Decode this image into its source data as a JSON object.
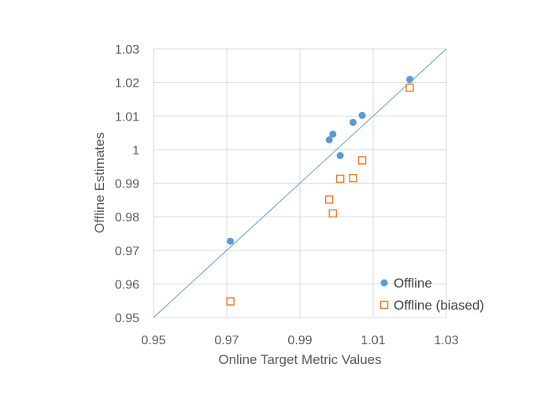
{
  "chart_data": {
    "type": "scatter",
    "title": "",
    "xlabel": "Online Target Metric Values",
    "ylabel": "Offline Estimates",
    "xlim": [
      0.95,
      1.03
    ],
    "ylim": [
      0.95,
      1.03
    ],
    "x_ticks": [
      0.95,
      0.97,
      0.99,
      1.01,
      1.03
    ],
    "x_tick_labels": [
      "0.95",
      "0.97",
      "0.99",
      "1.01",
      "1.03"
    ],
    "y_ticks": [
      0.95,
      0.96,
      0.97,
      0.98,
      0.99,
      1.0,
      1.01,
      1.02,
      1.03
    ],
    "y_tick_labels": [
      "0.95",
      "0.96",
      "0.97",
      "0.98",
      "0.99",
      "1",
      "1.01",
      "1.02",
      "1.03"
    ],
    "grid": true,
    "legend_position": "bottom-right",
    "reference_line": {
      "from": [
        0.95,
        0.95
      ],
      "to": [
        1.03,
        1.03
      ],
      "color": "#5b9bd5"
    },
    "series": [
      {
        "name": "Offline",
        "marker": "circle",
        "color": "#5b9bd5",
        "points": [
          [
            0.971,
            0.9727
          ],
          [
            0.998,
            1.0029
          ],
          [
            0.999,
            1.0046
          ],
          [
            1.001,
            0.9982
          ],
          [
            1.0045,
            1.0081
          ],
          [
            1.007,
            1.0102
          ],
          [
            1.02,
            1.0209
          ]
        ]
      },
      {
        "name": "Offline (biased)",
        "marker": "square-open",
        "color": "#ed7d31",
        "points": [
          [
            0.971,
            0.9548
          ],
          [
            0.998,
            0.9851
          ],
          [
            0.999,
            0.981
          ],
          [
            1.001,
            0.9913
          ],
          [
            1.0045,
            0.9915
          ],
          [
            1.007,
            0.9968
          ],
          [
            1.02,
            1.0184
          ]
        ]
      }
    ]
  }
}
